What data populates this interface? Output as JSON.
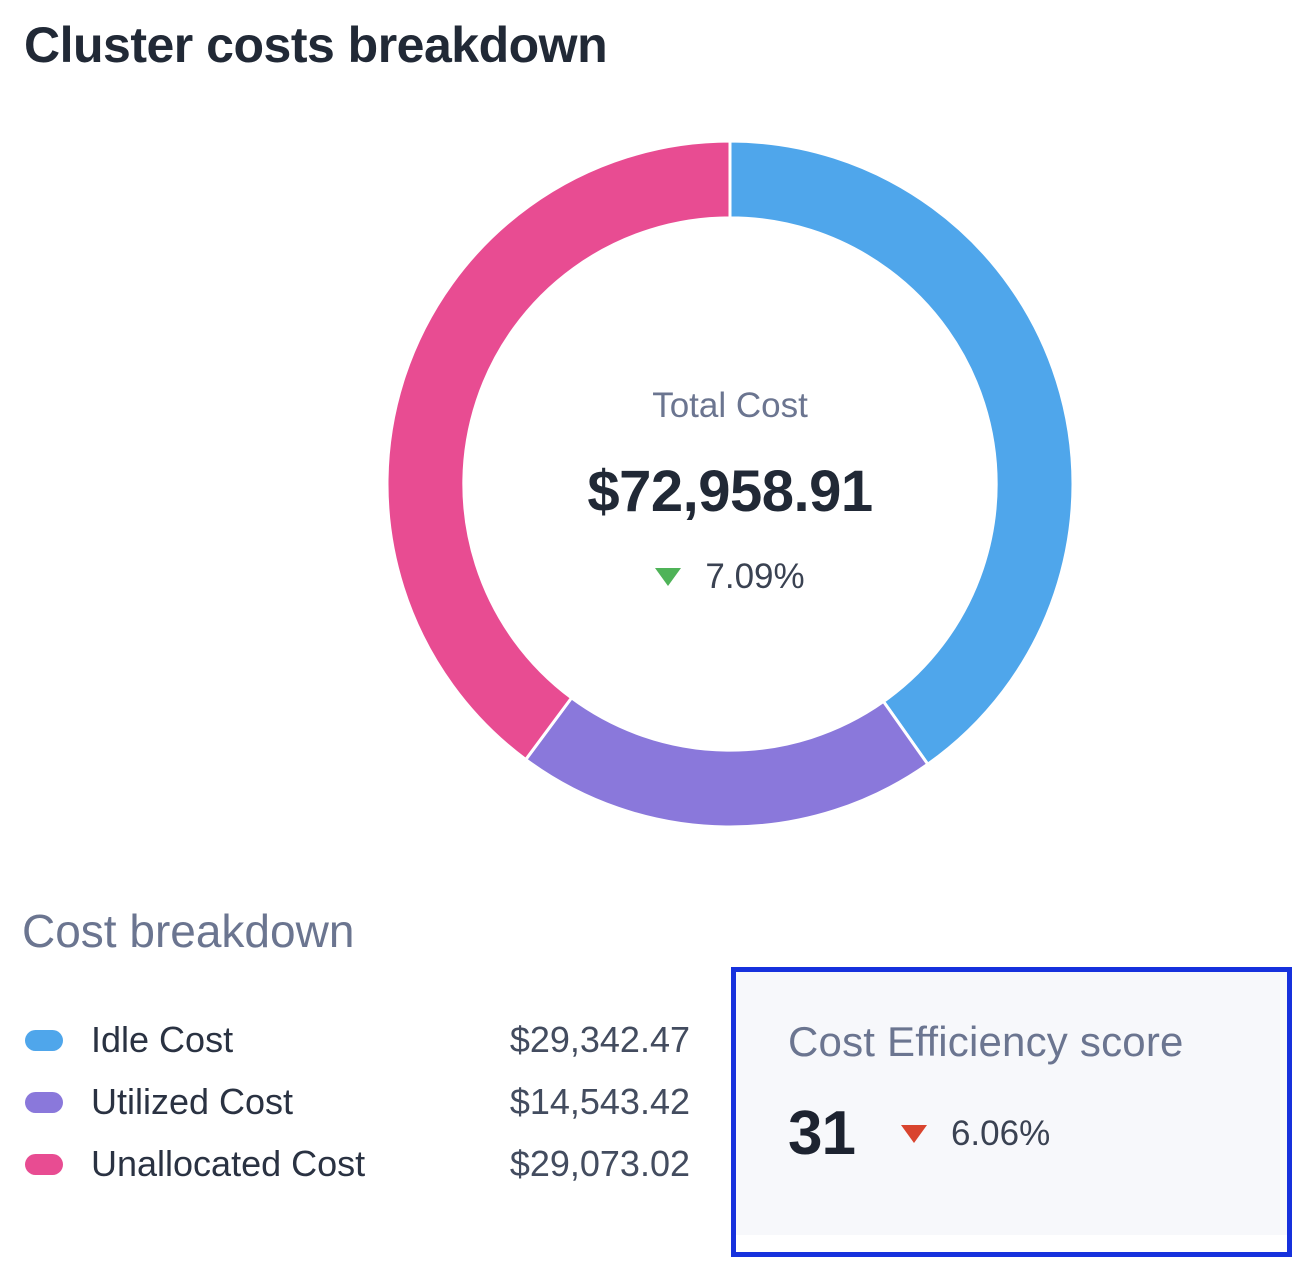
{
  "title": "Cluster costs breakdown",
  "colors": {
    "idle": "#4FA6EB",
    "utilized": "#8A78DB",
    "unallocated": "#E84C92",
    "green": "#4FB358",
    "red": "#D9442E",
    "border_blue": "#1631DD",
    "tile_bg": "#F7F8FB",
    "slate": "#6B7590",
    "dark": "#212936"
  },
  "chart_data": {
    "type": "pie",
    "title": "Cluster costs breakdown",
    "categories": [
      "Idle Cost",
      "Utilized Cost",
      "Unallocated Cost"
    ],
    "values": [
      29342.47,
      14543.42,
      29073.02
    ],
    "series": [
      {
        "name": "Idle Cost",
        "value": 29342.47,
        "display": "$29,342.47",
        "color": "#4FA6EB"
      },
      {
        "name": "Utilized Cost",
        "value": 14543.42,
        "display": "$14,543.42",
        "color": "#8A78DB"
      },
      {
        "name": "Unallocated Cost",
        "value": 29073.02,
        "display": "$29,073.02",
        "color": "#E84C92"
      }
    ],
    "total": 72958.91,
    "total_display": "$72,958.91",
    "center_label": "Total Cost",
    "start_angle_deg": 0,
    "direction": "clockwise",
    "inner_radius_ratio": 0.776,
    "segment_gap_stroke": "#ffffff"
  },
  "donut_center": {
    "label": "Total Cost",
    "total": "$72,958.91",
    "delta": "7.09%",
    "delta_direction": "down"
  },
  "breakdown": {
    "heading": "Cost breakdown",
    "rows": [
      {
        "label": "Idle Cost",
        "value": "$29,342.47"
      },
      {
        "label": "Utilized Cost",
        "value": "$14,543.42"
      },
      {
        "label": "Unallocated Cost",
        "value": "$29,073.02"
      }
    ]
  },
  "efficiency": {
    "heading": "Cost Efficiency score",
    "score": "31",
    "delta": "6.06%",
    "delta_direction": "down"
  }
}
